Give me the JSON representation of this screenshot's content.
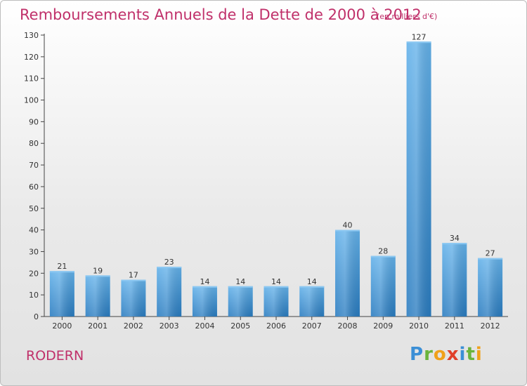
{
  "header": {
    "title": "Remboursements Annuels de la Dette de 2000 à 2012",
    "unit": "(en milliers d'€)"
  },
  "footer": {
    "location": "RODERN",
    "logo": "Proxiti"
  },
  "colors": {
    "title": "#c0306a",
    "bar_top": "#64b2ea",
    "bar_bottom": "#2a7cc0"
  },
  "chart_data": {
    "type": "bar",
    "title": "Remboursements Annuels de la Dette de 2000 à 2012",
    "xlabel": "",
    "ylabel": "",
    "ylim": [
      0,
      130
    ],
    "yticks": [
      0,
      10,
      20,
      30,
      40,
      50,
      60,
      70,
      80,
      90,
      100,
      110,
      120,
      130
    ],
    "grid": false,
    "categories": [
      "2000",
      "2001",
      "2002",
      "2003",
      "2004",
      "2005",
      "2006",
      "2007",
      "2008",
      "2009",
      "2010",
      "2011",
      "2012"
    ],
    "values": [
      21,
      19,
      17,
      23,
      14,
      14,
      14,
      14,
      40,
      28,
      127,
      34,
      27
    ]
  }
}
